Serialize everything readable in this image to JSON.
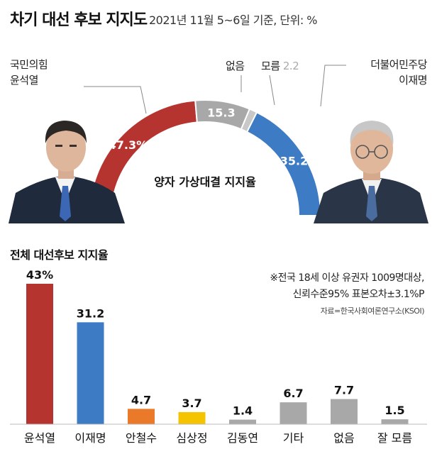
{
  "header": {
    "title": "차기 대선 후보 지지도",
    "subtitle": "2021년 11월 5~6일 기준, 단위: %"
  },
  "colors": {
    "red": "#B5342F",
    "blue": "#3D7BC4",
    "gray": "#A8A8A8",
    "light_gray": "#C8C8C8",
    "orange": "#EA7A2A",
    "yellow": "#F5C400"
  },
  "labels": {
    "yoon_party": "국민의힘",
    "yoon_name": "윤석열",
    "lee_party": "더불어민주당",
    "lee_name": "이재명",
    "none": "없음",
    "unknown": "모름",
    "unknown_value": "2.2"
  },
  "photos": {
    "left": "yoon-portrait",
    "right": "lee-portrait"
  },
  "notes": {
    "line1": "※전국 18세 이상 유권자 1009명대상,",
    "line2": "신뢰수준95% 표본오차±3.1%P",
    "line3": "자료=한국사회여론연구소(KSOI)"
  },
  "chart_data": [
    {
      "type": "pie",
      "subtype": "half-donut",
      "title": "양자 가상대결 지지율",
      "slices": [
        {
          "label": "윤석열",
          "value": 47.3,
          "display": "47.3%",
          "color": "#B5342F"
        },
        {
          "label": "없음",
          "value": 15.3,
          "display": "15.3",
          "color": "#A8A8A8"
        },
        {
          "label": "모름",
          "value": 2.2,
          "display": "2.2",
          "color": "#C8C8C8"
        },
        {
          "label": "이재명",
          "value": 35.2,
          "display": "35.2",
          "color": "#3D7BC4"
        }
      ]
    },
    {
      "type": "bar",
      "title": "전체 대선후보 지지율",
      "categories": [
        "윤석열",
        "이재명",
        "안철수",
        "심상정",
        "김동연",
        "기타",
        "없음",
        "잘 모름"
      ],
      "values": [
        43,
        31.2,
        4.7,
        3.7,
        1.4,
        6.7,
        7.7,
        1.5
      ],
      "value_labels": [
        "43%",
        "31.2",
        "4.7",
        "3.7",
        "1.4",
        "6.7",
        "7.7",
        "1.5"
      ],
      "colors": [
        "#B5342F",
        "#3D7BC4",
        "#EA7A2A",
        "#F5C400",
        "#A8A8A8",
        "#A8A8A8",
        "#A8A8A8",
        "#A8A8A8"
      ]
    }
  ]
}
